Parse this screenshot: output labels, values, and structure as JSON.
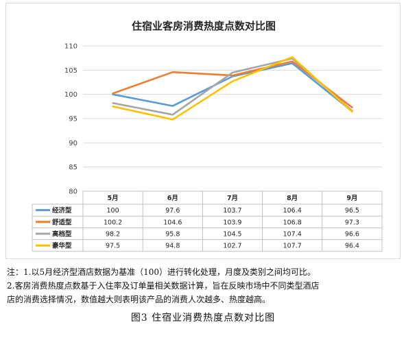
{
  "chart_data": {
    "type": "line",
    "title": "住宿业客房消费热度点数对比图",
    "categories": [
      "5月",
      "6月",
      "7月",
      "8月",
      "9月"
    ],
    "ylim": [
      80,
      110
    ],
    "yticks": [
      "80",
      "85",
      "90",
      "95",
      "100",
      "105",
      "110"
    ],
    "grid": true,
    "legend": "data-table-below",
    "series": [
      {
        "name": "经济型",
        "color": "#5b9bd5",
        "values": [
          100,
          97.6,
          103.7,
          106.4,
          96.5
        ],
        "labels": [
          "100",
          "97.6",
          "103.7",
          "106.4",
          "96.5"
        ]
      },
      {
        "name": "舒适型",
        "color": "#ed7d31",
        "values": [
          100.2,
          104.6,
          103.9,
          106.8,
          97.3
        ],
        "labels": [
          "100.2",
          "104.6",
          "103.9",
          "106.8",
          "97.3"
        ]
      },
      {
        "name": "高档型",
        "color": "#a5a5a5",
        "values": [
          98.2,
          95.8,
          104.5,
          107.4,
          96.6
        ],
        "labels": [
          "98.2",
          "95.8",
          "104.5",
          "107.4",
          "96.6"
        ]
      },
      {
        "name": "豪华型",
        "color": "#ffc000",
        "values": [
          97.5,
          94.8,
          102.7,
          107.7,
          96.4
        ],
        "labels": [
          "97.5",
          "94.8",
          "102.7",
          "107.7",
          "96.4"
        ]
      }
    ]
  },
  "notes": [
    "注：1.以5月经济型酒店数据为基准（100）进行转化处理，月度及类别之间均可比。",
    "2.客房消费热度点数基于入住率及订单量相关数据计算，旨在反映市场中不同类型酒店",
    "店的消费选择情况，数值越大则表明该产品的消费人次越多、热度越高。"
  ],
  "caption": "图3 住宿业消费热度点数对比图"
}
